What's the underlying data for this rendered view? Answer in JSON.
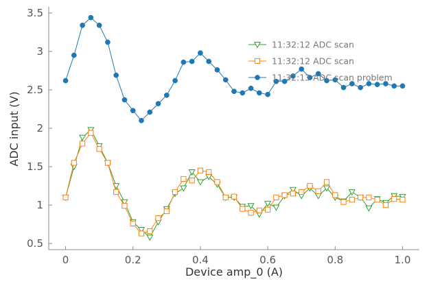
{
  "chart_data": {
    "type": "line",
    "xlabel": "Device amp_0 (A)",
    "ylabel": "ADC input (V)",
    "xlim": [
      -0.05,
      1.05
    ],
    "ylim": [
      0.42,
      3.58
    ],
    "x_ticks": [
      0,
      0.2,
      0.4,
      0.6,
      0.8,
      1.0
    ],
    "x_tick_labels": [
      "0",
      "0.2",
      "0.4",
      "0.6",
      "0.8",
      "1.0"
    ],
    "y_ticks": [
      0.5,
      1,
      1.5,
      2,
      2.5,
      3,
      3.5
    ],
    "y_tick_labels": [
      "0.5",
      "1",
      "1.5",
      "2",
      "2.5",
      "3",
      "3.5"
    ],
    "grid": false,
    "legend_position": "upper-right",
    "x": [
      0,
      0.025,
      0.05,
      0.075,
      0.1,
      0.125,
      0.15,
      0.175,
      0.2,
      0.225,
      0.25,
      0.275,
      0.3,
      0.325,
      0.35,
      0.375,
      0.4,
      0.425,
      0.45,
      0.475,
      0.5,
      0.525,
      0.55,
      0.575,
      0.6,
      0.625,
      0.65,
      0.675,
      0.7,
      0.725,
      0.75,
      0.775,
      0.8,
      0.825,
      0.85,
      0.875,
      0.9,
      0.925,
      0.95,
      0.975,
      1.0
    ],
    "series": [
      {
        "name": "11:32:12 ADC scan",
        "color": "#2ca02c",
        "marker": "triangle-down-open",
        "values": [
          1.1,
          1.5,
          1.88,
          1.98,
          1.77,
          1.55,
          1.25,
          1.04,
          0.78,
          0.68,
          0.58,
          0.78,
          0.95,
          1.15,
          1.22,
          1.43,
          1.3,
          1.37,
          1.27,
          1.1,
          1.1,
          0.98,
          0.99,
          0.88,
          1.02,
          0.97,
          1.12,
          1.2,
          1.12,
          1.22,
          1.12,
          1.22,
          1.1,
          1.05,
          1.17,
          1.1,
          0.96,
          1.08,
          1.03,
          1.12,
          1.11
        ]
      },
      {
        "name": "11:32:12 ADC scan",
        "color": "#ff7f0e",
        "marker": "square-open",
        "values": [
          1.1,
          1.55,
          1.8,
          1.94,
          1.73,
          1.55,
          1.17,
          0.99,
          0.76,
          0.63,
          0.66,
          0.83,
          0.92,
          1.17,
          1.34,
          1.32,
          1.45,
          1.43,
          1.3,
          1.1,
          1.11,
          0.95,
          0.9,
          0.93,
          0.94,
          1.1,
          1.13,
          1.15,
          1.17,
          1.25,
          1.18,
          1.3,
          1.13,
          1.04,
          1.07,
          1.1,
          1.1,
          1.07,
          1.0,
          1.08,
          1.07
        ]
      },
      {
        "name": "11:32:13 ADC scan problem",
        "color": "#1f77b4",
        "marker": "circle-filled",
        "values": [
          2.62,
          2.95,
          3.34,
          3.44,
          3.34,
          3.12,
          2.69,
          2.37,
          2.23,
          2.1,
          2.21,
          2.32,
          2.43,
          2.62,
          2.86,
          2.87,
          2.98,
          2.87,
          2.76,
          2.63,
          2.48,
          2.46,
          2.52,
          2.46,
          2.44,
          2.61,
          2.61,
          2.68,
          2.77,
          2.66,
          2.71,
          2.62,
          2.63,
          2.53,
          2.58,
          2.53,
          2.58,
          2.57,
          2.58,
          2.55,
          2.55
        ]
      }
    ]
  }
}
